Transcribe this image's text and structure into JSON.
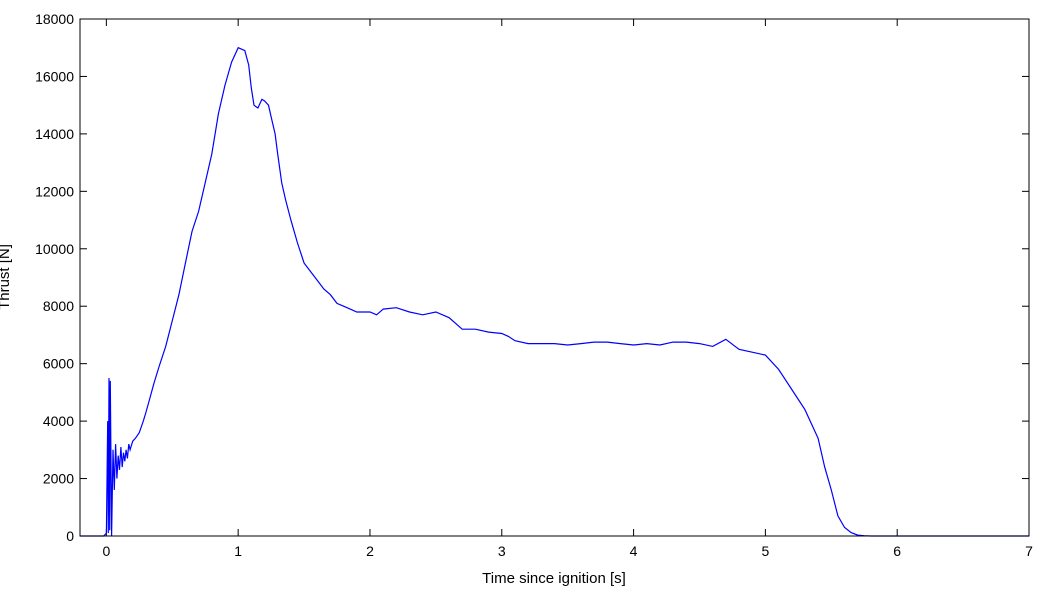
{
  "chart_data": {
    "type": "line",
    "title": "",
    "xlabel": "Time since ignition [s]",
    "ylabel": "Thrust [N]",
    "xlim": [
      -0.2,
      7
    ],
    "ylim": [
      0,
      18000
    ],
    "x_ticks": [
      0,
      1,
      2,
      3,
      4,
      5,
      6,
      7
    ],
    "y_ticks": [
      0,
      2000,
      4000,
      6000,
      8000,
      10000,
      12000,
      14000,
      16000,
      18000
    ],
    "grid": false,
    "legend": "none",
    "line_color": "#0000ff",
    "series": [
      {
        "x": [
          -0.2,
          -0.02,
          0.0,
          0.01,
          0.015,
          0.02,
          0.025,
          0.03,
          0.04,
          0.05,
          0.06,
          0.07,
          0.08,
          0.09,
          0.1,
          0.11,
          0.12,
          0.13,
          0.14,
          0.15,
          0.16,
          0.17,
          0.18,
          0.2,
          0.22,
          0.25,
          0.28,
          0.3,
          0.33,
          0.36,
          0.4,
          0.45,
          0.5,
          0.55,
          0.6,
          0.65,
          0.7,
          0.75,
          0.8,
          0.85,
          0.9,
          0.95,
          1.0,
          1.05,
          1.08,
          1.1,
          1.12,
          1.15,
          1.18,
          1.2,
          1.23,
          1.25,
          1.28,
          1.3,
          1.33,
          1.36,
          1.4,
          1.45,
          1.5,
          1.55,
          1.6,
          1.65,
          1.7,
          1.75,
          1.8,
          1.85,
          1.9,
          1.95,
          2.0,
          2.05,
          2.1,
          2.2,
          2.3,
          2.4,
          2.5,
          2.6,
          2.7,
          2.8,
          2.9,
          3.0,
          3.05,
          3.1,
          3.2,
          3.3,
          3.4,
          3.5,
          3.6,
          3.7,
          3.8,
          3.9,
          4.0,
          4.1,
          4.2,
          4.3,
          4.4,
          4.5,
          4.6,
          4.7,
          4.8,
          4.9,
          5.0,
          5.1,
          5.2,
          5.3,
          5.4,
          5.45,
          5.5,
          5.55,
          5.6,
          5.65,
          5.7,
          5.75,
          5.8,
          5.85,
          5.9,
          5.95,
          6.0,
          6.05,
          6.1,
          6.15,
          6.2,
          6.3,
          6.4,
          6.5,
          6.6,
          6.7,
          6.8,
          7.0
        ],
        "y": [
          0,
          0,
          100,
          4000,
          100,
          5500,
          200,
          5400,
          0,
          3000,
          1600,
          3200,
          2000,
          2800,
          2300,
          3100,
          2400,
          2900,
          2600,
          3000,
          2700,
          3200,
          3000,
          3300,
          3400,
          3600,
          4000,
          4300,
          4800,
          5300,
          5900,
          6600,
          7500,
          8400,
          9500,
          10600,
          11300,
          12300,
          13300,
          14700,
          15700,
          16500,
          17000,
          16900,
          16400,
          15600,
          15000,
          14900,
          15200,
          15150,
          15000,
          14600,
          14000,
          13300,
          12300,
          11700,
          11000,
          10200,
          9500,
          9200,
          8900,
          8600,
          8400,
          8100,
          8000,
          7900,
          7800,
          7800,
          7800,
          7700,
          7900,
          7950,
          7800,
          7700,
          7800,
          7600,
          7200,
          7200,
          7100,
          7050,
          6950,
          6800,
          6700,
          6700,
          6700,
          6650,
          6700,
          6750,
          6750,
          6700,
          6650,
          6700,
          6650,
          6750,
          6750,
          6700,
          6600,
          6850,
          6500,
          6400,
          6300,
          5800,
          5100,
          4400,
          3400,
          2400,
          1600,
          700,
          300,
          120,
          30,
          10,
          0,
          0,
          0,
          0,
          0,
          0,
          0,
          0,
          0,
          0,
          0,
          0,
          0,
          0,
          0,
          0
        ]
      }
    ]
  }
}
